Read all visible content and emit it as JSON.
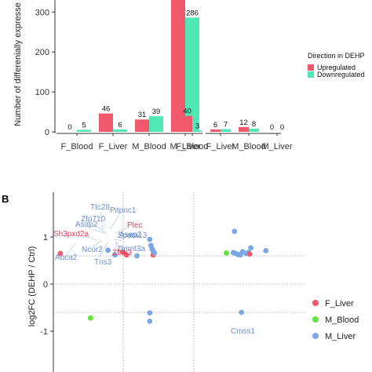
{
  "panel_b_label": "B",
  "chart_data": [
    {
      "type": "bar",
      "ylabel": "Number of differenially expresse",
      "ylim": [
        0,
        330
      ],
      "yticks": [
        0,
        100,
        200,
        300
      ],
      "legend": {
        "title": "Direction in DEHP",
        "position": "right",
        "entries": [
          {
            "name": "Upregulated",
            "color": "#f0596b"
          },
          {
            "name": "Downregulated",
            "color": "#4fe8b4"
          }
        ]
      },
      "groups": [
        {
          "categories": [
            "F_Blood",
            "F_Liver",
            "M_Blood",
            "M_Liver"
          ],
          "series": [
            {
              "name": "Upregulated",
              "values": [
                0,
                46,
                31,
                330
              ],
              "labels": [
                "0",
                "46",
                "31",
                ""
              ]
            },
            {
              "name": "Downregulated",
              "values": [
                5,
                6,
                39,
                286
              ],
              "labels": [
                "5",
                "6",
                "39",
                "286"
              ]
            }
          ]
        },
        {
          "categories": [
            "F_Blood",
            "F_Liver",
            "M_Blood",
            "M_Liver"
          ],
          "series": [
            {
              "name": "Upregulated",
              "values": [
                40,
                6,
                12,
                0
              ],
              "labels": [
                "40",
                "6",
                "12",
                "0"
              ]
            },
            {
              "name": "Downregulated",
              "values": [
                3,
                7,
                8,
                0
              ],
              "labels": [
                "3",
                "7",
                "8",
                "0"
              ]
            }
          ]
        }
      ]
    },
    {
      "type": "scatter",
      "ylabel": "log2FC (DEHP / Ctrl)",
      "ylim": [
        -1.4,
        1.35
      ],
      "yticks": [
        -1,
        0,
        1
      ],
      "hlines": [
        0.6,
        0,
        -0.6
      ],
      "legend": {
        "position": "right",
        "entries": [
          {
            "name": "F_Liver",
            "color": "#f0596b"
          },
          {
            "name": "M_Blood",
            "color": "#5ee83a"
          },
          {
            "name": "M_Liver",
            "color": "#7aa8e6"
          }
        ]
      },
      "points": [
        {
          "x": -3.9,
          "y": 0.65,
          "group": "F_Liver"
        },
        {
          "x": -1.85,
          "y": 0.72,
          "group": "M_Liver"
        },
        {
          "x": -1.55,
          "y": 0.62,
          "group": "M_Liver"
        },
        {
          "x": -1.2,
          "y": 0.68,
          "group": "F_Liver"
        },
        {
          "x": -1.05,
          "y": 0.62,
          "group": "F_Liver"
        },
        {
          "x": -0.6,
          "y": 0.6,
          "group": "M_Liver"
        },
        {
          "x": -0.05,
          "y": 0.95,
          "group": "M_Liver"
        },
        {
          "x": 0.0,
          "y": 0.82,
          "group": "M_Liver"
        },
        {
          "x": 0.05,
          "y": 0.75,
          "group": "M_Liver"
        },
        {
          "x": 0.1,
          "y": 0.7,
          "group": "M_Liver"
        },
        {
          "x": 0.1,
          "y": 0.62,
          "group": "F_Liver"
        },
        {
          "x": 0.15,
          "y": 0.66,
          "group": "M_Liver"
        },
        {
          "x": -2.6,
          "y": -0.72,
          "group": "M_Blood"
        },
        {
          "x": -0.05,
          "y": -0.61,
          "group": "M_Liver"
        },
        {
          "x": -0.05,
          "y": -0.79,
          "group": "M_Liver"
        },
        {
          "x": 3.6,
          "y": 1.12,
          "group": "M_Liver"
        },
        {
          "x": 3.25,
          "y": 0.66,
          "group": "M_Blood"
        },
        {
          "x": 3.55,
          "y": 0.67,
          "group": "M_Liver"
        },
        {
          "x": 3.65,
          "y": 0.65,
          "group": "M_Liver"
        },
        {
          "x": 3.75,
          "y": 0.63,
          "group": "M_Liver"
        },
        {
          "x": 3.85,
          "y": 0.62,
          "group": "M_Liver"
        },
        {
          "x": 3.95,
          "y": 0.69,
          "group": "M_Liver"
        },
        {
          "x": 4.1,
          "y": 0.65,
          "group": "M_Liver"
        },
        {
          "x": 4.2,
          "y": 0.67,
          "group": "M_Liver"
        },
        {
          "x": 4.25,
          "y": 0.64,
          "group": "F_Liver"
        },
        {
          "x": 4.3,
          "y": 0.77,
          "group": "M_Liver"
        },
        {
          "x": 4.95,
          "y": 0.71,
          "group": "M_Liver"
        },
        {
          "x": 3.9,
          "y": -0.6,
          "group": "M_Liver"
        }
      ],
      "gene_labels": [
        {
          "text": "Ttc28",
          "color": "#6d8fd0"
        },
        {
          "text": "Pitpnc1",
          "color": "#6d8fd0"
        },
        {
          "text": "Zfp710",
          "color": "#6d8fd0"
        },
        {
          "text": "Asap2",
          "color": "#6d8fd0"
        },
        {
          "text": "Plec",
          "color": "#e83f5e"
        },
        {
          "text": "Asap2",
          "color": "#6d8fd0"
        },
        {
          "text": "Sh3pxd2a",
          "color": "#e83f5e"
        },
        {
          "text": "Spata13",
          "color": "#6d8fd0"
        },
        {
          "text": "Dnmt3a",
          "color": "#6d8fd0"
        },
        {
          "text": "Zfhx3",
          "color": "#e83f5e"
        },
        {
          "text": "Ncor2",
          "color": "#6d8fd0"
        },
        {
          "text": "Abca2",
          "color": "#6d8fd0"
        },
        {
          "text": "Tns3",
          "color": "#6d8fd0"
        },
        {
          "text": "Cmss1",
          "color": "#6d8fd0"
        }
      ]
    }
  ]
}
